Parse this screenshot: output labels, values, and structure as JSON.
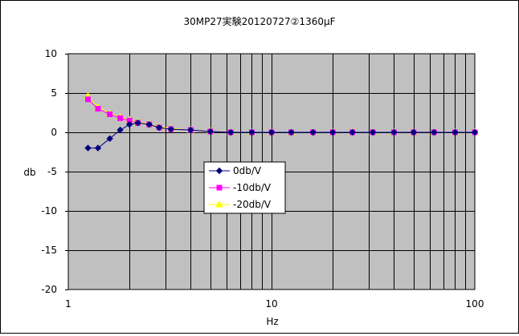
{
  "chart_data": {
    "type": "line",
    "title": "30MP27実験20120727②1360μF",
    "xlabel": "Hz",
    "ylabel": "db",
    "xscale": "log",
    "xlim": [
      1,
      100
    ],
    "ylim": [
      -20,
      10
    ],
    "x_ticks": [
      "1",
      "10",
      "100"
    ],
    "y_ticks": [
      "10",
      "5",
      "0",
      "-5",
      "-10",
      "-15",
      "-20"
    ],
    "grid": true,
    "legend_position": "inside-center-left",
    "series": [
      {
        "name": "0db/V",
        "color": "#000080",
        "marker": "diamond",
        "points": [
          [
            1.25,
            -2.0
          ],
          [
            1.4,
            -2.0
          ],
          [
            1.6,
            -0.8
          ],
          [
            1.8,
            0.3
          ],
          [
            2.0,
            1.0
          ],
          [
            2.2,
            1.2
          ],
          [
            2.5,
            1.0
          ],
          [
            2.8,
            0.6
          ],
          [
            3.2,
            0.4
          ],
          [
            4.0,
            0.3
          ],
          [
            5.0,
            0.1
          ],
          [
            6.3,
            0.0
          ],
          [
            8.0,
            0.0
          ],
          [
            10,
            0.0
          ],
          [
            12.5,
            0.0
          ],
          [
            16,
            0.0
          ],
          [
            20,
            0.0
          ],
          [
            25,
            0.0
          ],
          [
            31.5,
            0.0
          ],
          [
            40,
            0.0
          ],
          [
            50,
            0.0
          ],
          [
            63,
            0.0
          ],
          [
            80,
            0.0
          ],
          [
            100,
            0.0
          ]
        ]
      },
      {
        "name": "-10db/V",
        "color": "#ff00ff",
        "marker": "square",
        "points": [
          [
            1.25,
            4.2
          ],
          [
            1.4,
            3.0
          ],
          [
            1.6,
            2.3
          ],
          [
            1.8,
            1.8
          ],
          [
            2.0,
            1.5
          ],
          [
            2.2,
            1.2
          ],
          [
            2.5,
            1.0
          ],
          [
            2.8,
            0.6
          ],
          [
            3.2,
            0.4
          ],
          [
            4.0,
            0.3
          ],
          [
            5.0,
            0.1
          ],
          [
            6.3,
            0.0
          ],
          [
            8.0,
            0.0
          ],
          [
            10,
            0.0
          ],
          [
            12.5,
            0.0
          ],
          [
            16,
            0.0
          ],
          [
            20,
            0.0
          ],
          [
            25,
            0.0
          ],
          [
            31.5,
            0.0
          ],
          [
            40,
            0.0
          ],
          [
            50,
            0.0
          ],
          [
            63,
            0.0
          ],
          [
            80,
            0.0
          ],
          [
            100,
            0.0
          ]
        ]
      },
      {
        "name": "-20db/V",
        "color": "#ffff00",
        "marker": "triangle",
        "points": [
          [
            1.25,
            4.6
          ],
          [
            1.4,
            3.2
          ],
          [
            1.6,
            2.4
          ],
          [
            1.8,
            1.9
          ],
          [
            2.0,
            1.6
          ],
          [
            2.2,
            1.3
          ],
          [
            2.5,
            1.1
          ],
          [
            2.8,
            0.7
          ],
          [
            3.2,
            0.5
          ],
          [
            4.0,
            0.3
          ],
          [
            5.0,
            0.15
          ],
          [
            6.3,
            0.0
          ],
          [
            8.0,
            0.0
          ],
          [
            10,
            0.0
          ],
          [
            12.5,
            0.0
          ],
          [
            16,
            0.0
          ],
          [
            20,
            0.0
          ],
          [
            25,
            0.0
          ],
          [
            31.5,
            0.0
          ],
          [
            40,
            0.0
          ],
          [
            50,
            0.0
          ],
          [
            63,
            0.0
          ],
          [
            80,
            0.0
          ],
          [
            100,
            0.0
          ]
        ]
      }
    ]
  },
  "style": {
    "plot_background": "#c0c0c0",
    "grid_color": "#000000"
  }
}
